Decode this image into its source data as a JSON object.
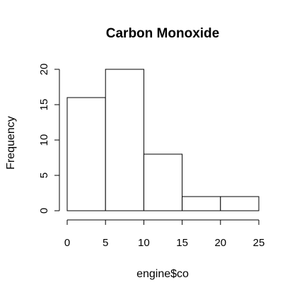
{
  "chart_data": {
    "type": "bar",
    "title": "Carbon Monoxide",
    "xlabel": "engine$co",
    "ylabel": "Frequency",
    "bins": [
      {
        "from": 0,
        "to": 5,
        "count": 16
      },
      {
        "from": 5,
        "to": 10,
        "count": 20
      },
      {
        "from": 10,
        "to": 15,
        "count": 8
      },
      {
        "from": 15,
        "to": 20,
        "count": 2
      },
      {
        "from": 20,
        "to": 25,
        "count": 2
      }
    ],
    "xlim": [
      0,
      25
    ],
    "ylim": [
      0,
      20
    ],
    "x_ticks": [
      0,
      5,
      10,
      15,
      20,
      25
    ],
    "y_ticks": [
      0,
      5,
      10,
      15,
      20
    ],
    "grid": false,
    "legend": "none",
    "bar_fill": "#ffffff",
    "bar_stroke": "#000000"
  }
}
